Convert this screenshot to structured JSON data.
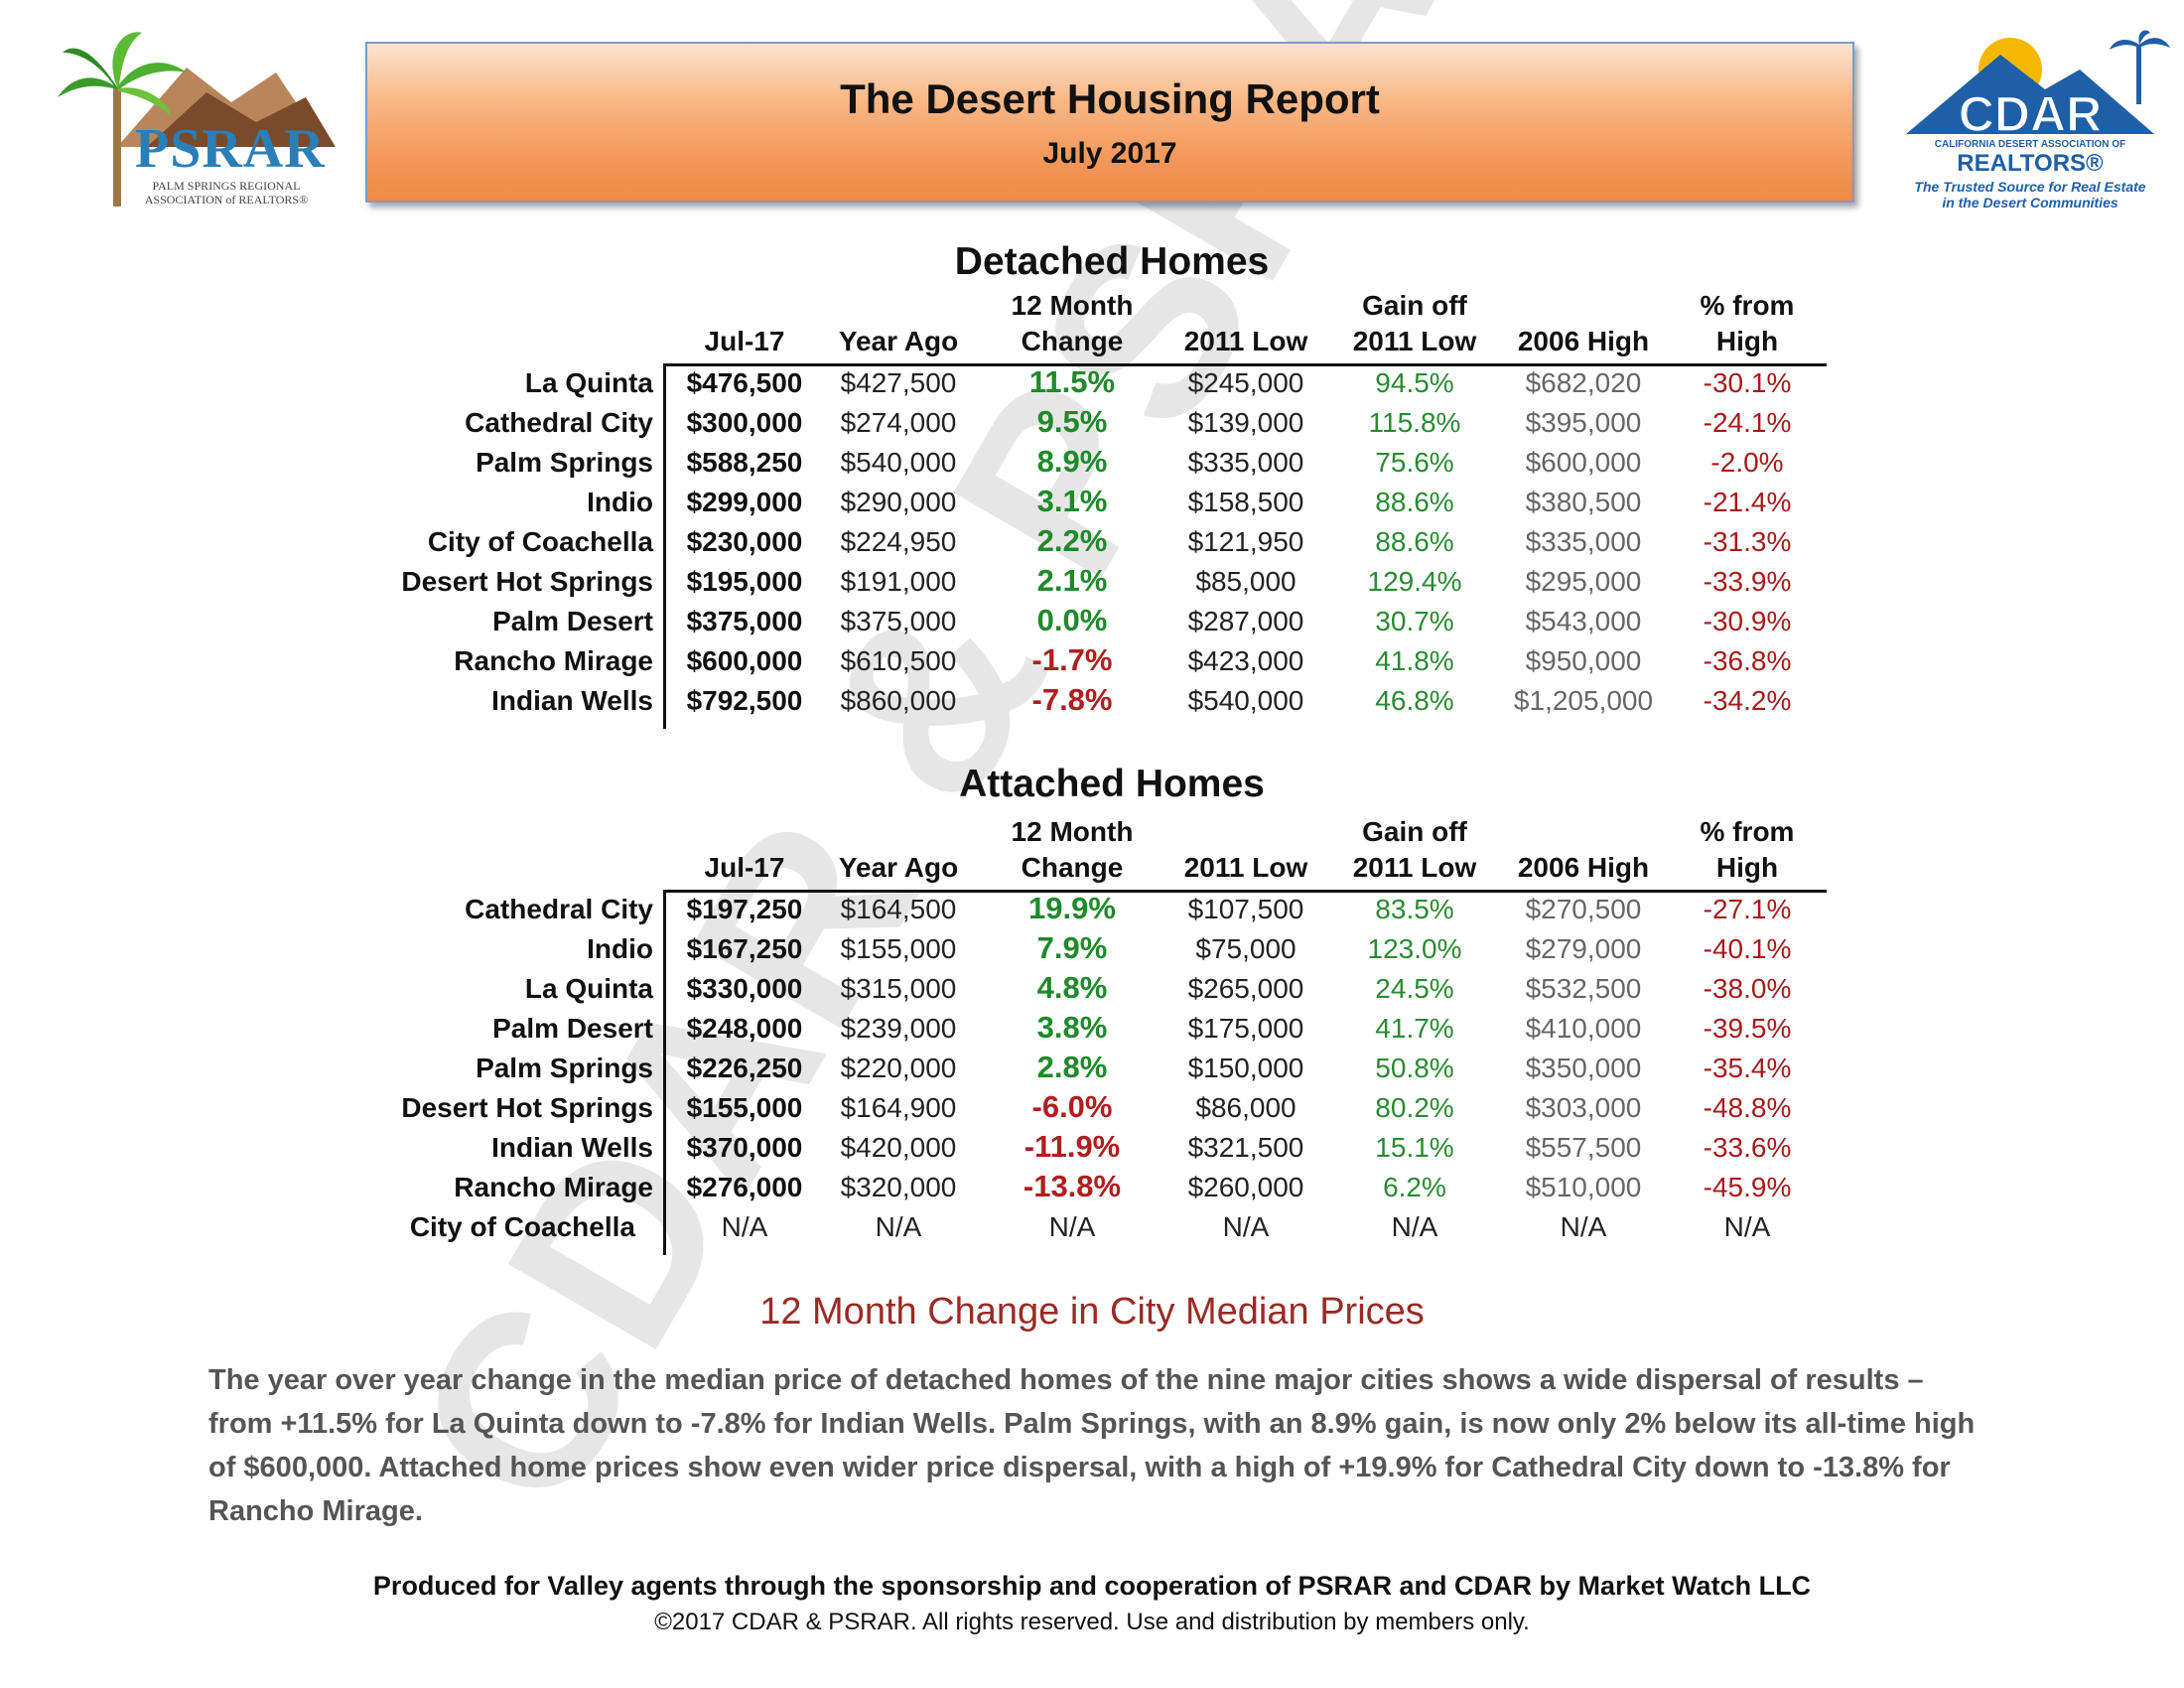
{
  "watermark": "CDAR & PSRAR",
  "header": {
    "title": "The Desert Housing Report",
    "subtitle": "July 2017"
  },
  "logos": {
    "psrar": {
      "name": "PSRAR",
      "sub": "PALM SPRINGS REGIONAL ASSOCIATION of REALTORS®"
    },
    "cdar": {
      "name": "CDAR",
      "assoc": "CALIFORNIA DESERT ASSOCIATION OF",
      "realtors": "REALTORS®",
      "tagline_1": "The Trusted Source for Real Estate",
      "tagline_2": "in the Desert Communities"
    }
  },
  "columns": {
    "jul": "Jul-17",
    "yago": "Year Ago",
    "chg_1": "12 Month",
    "chg_2": "Change",
    "low": "2011 Low",
    "gain_1": "Gain off",
    "gain_2": "2011 Low",
    "high": "2006 High",
    "pct_1": "% from",
    "pct_2": "High"
  },
  "detached": {
    "title": "Detached Homes",
    "rows": [
      {
        "city": "La Quinta",
        "jul": "$476,500",
        "yago": "$427,500",
        "chg": "11.5%",
        "sign": "pos",
        "low": "$245,000",
        "gain": "94.5%",
        "high": "$682,020",
        "pct": "-30.1%"
      },
      {
        "city": "Cathedral City",
        "jul": "$300,000",
        "yago": "$274,000",
        "chg": "9.5%",
        "sign": "pos",
        "low": "$139,000",
        "gain": "115.8%",
        "high": "$395,000",
        "pct": "-24.1%"
      },
      {
        "city": "Palm Springs",
        "jul": "$588,250",
        "yago": "$540,000",
        "chg": "8.9%",
        "sign": "pos",
        "low": "$335,000",
        "gain": "75.6%",
        "high": "$600,000",
        "pct": "-2.0%"
      },
      {
        "city": "Indio",
        "jul": "$299,000",
        "yago": "$290,000",
        "chg": "3.1%",
        "sign": "pos",
        "low": "$158,500",
        "gain": "88.6%",
        "high": "$380,500",
        "pct": "-21.4%"
      },
      {
        "city": "City of Coachella",
        "jul": "$230,000",
        "yago": "$224,950",
        "chg": "2.2%",
        "sign": "pos",
        "low": "$121,950",
        "gain": "88.6%",
        "high": "$335,000",
        "pct": "-31.3%"
      },
      {
        "city": "Desert Hot Springs",
        "jul": "$195,000",
        "yago": "$191,000",
        "chg": "2.1%",
        "sign": "pos",
        "low": "$85,000",
        "gain": "129.4%",
        "high": "$295,000",
        "pct": "-33.9%"
      },
      {
        "city": "Palm Desert",
        "jul": "$375,000",
        "yago": "$375,000",
        "chg": "0.0%",
        "sign": "pos",
        "low": "$287,000",
        "gain": "30.7%",
        "high": "$543,000",
        "pct": "-30.9%"
      },
      {
        "city": "Rancho Mirage",
        "jul": "$600,000",
        "yago": "$610,500",
        "chg": "-1.7%",
        "sign": "neg",
        "low": "$423,000",
        "gain": "41.8%",
        "high": "$950,000",
        "pct": "-36.8%"
      },
      {
        "city": "Indian Wells",
        "jul": "$792,500",
        "yago": "$860,000",
        "chg": "-7.8%",
        "sign": "neg",
        "low": "$540,000",
        "gain": "46.8%",
        "high": "$1,205,000",
        "pct": "-34.2%"
      }
    ]
  },
  "attached": {
    "title": "Attached Homes",
    "rows": [
      {
        "city": "Cathedral City",
        "jul": "$197,250",
        "yago": "$164,500",
        "chg": "19.9%",
        "sign": "pos",
        "low": "$107,500",
        "gain": "83.5%",
        "high": "$270,500",
        "pct": "-27.1%"
      },
      {
        "city": "Indio",
        "jul": "$167,250",
        "yago": "$155,000",
        "chg": "7.9%",
        "sign": "pos",
        "low": "$75,000",
        "gain": "123.0%",
        "high": "$279,000",
        "pct": "-40.1%"
      },
      {
        "city": "La Quinta",
        "jul": "$330,000",
        "yago": "$315,000",
        "chg": "4.8%",
        "sign": "pos",
        "low": "$265,000",
        "gain": "24.5%",
        "high": "$532,500",
        "pct": "-38.0%"
      },
      {
        "city": "Palm Desert",
        "jul": "$248,000",
        "yago": "$239,000",
        "chg": "3.8%",
        "sign": "pos",
        "low": "$175,000",
        "gain": "41.7%",
        "high": "$410,000",
        "pct": "-39.5%"
      },
      {
        "city": "Palm Springs",
        "jul": "$226,250",
        "yago": "$220,000",
        "chg": "2.8%",
        "sign": "pos",
        "low": "$150,000",
        "gain": "50.8%",
        "high": "$350,000",
        "pct": "-35.4%"
      },
      {
        "city": "Desert Hot Springs",
        "jul": "$155,000",
        "yago": "$164,900",
        "chg": "-6.0%",
        "sign": "neg",
        "low": "$86,000",
        "gain": "80.2%",
        "high": "$303,000",
        "pct": "-48.8%"
      },
      {
        "city": "Indian Wells",
        "jul": "$370,000",
        "yago": "$420,000",
        "chg": "-11.9%",
        "sign": "neg",
        "low": "$321,500",
        "gain": "15.1%",
        "high": "$557,500",
        "pct": "-33.6%"
      },
      {
        "city": "Rancho Mirage",
        "jul": "$276,000",
        "yago": "$320,000",
        "chg": "-13.8%",
        "sign": "neg",
        "low": "$260,000",
        "gain": "6.2%",
        "high": "$510,000",
        "pct": "-45.9%"
      },
      {
        "city": "City of Coachella",
        "jul": "N/A",
        "yago": "N/A",
        "chg": "N/A",
        "sign": "na",
        "low": "N/A",
        "gain": "N/A",
        "high": "N/A",
        "pct": "N/A"
      }
    ]
  },
  "summary": {
    "title": "12 Month Change in City Median Prices",
    "text": "The year over year change in the median price of detached homes of the nine major cities shows a wide dispersal of results – from +11.5% for La Quinta down to -7.8% for Indian Wells. Palm Springs, with an 8.9% gain, is now only 2% below its all-time high of $600,000. Attached home prices show even wider price dispersal, with a high of +19.9% for Cathedral City down to -13.8% for Rancho Mirage."
  },
  "footer": {
    "line1": "Produced for Valley agents through the sponsorship and cooperation of PSRAR and CDAR by Market Watch LLC",
    "line2": "©2017 CDAR & PSRAR.  All rights reserved.  Use and distribution by members only."
  }
}
